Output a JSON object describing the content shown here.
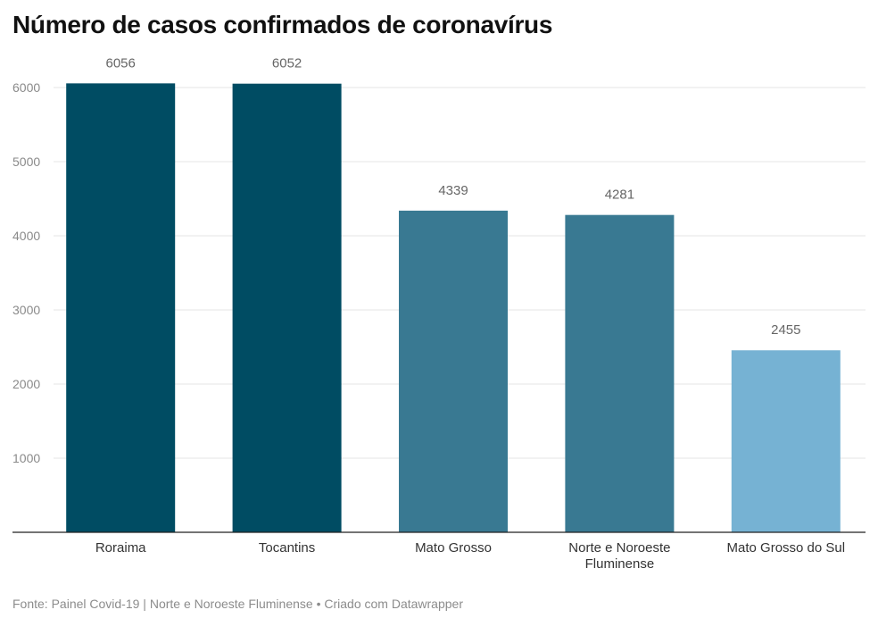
{
  "header": {
    "title": "Número de casos confirmados de coronavírus"
  },
  "footer": {
    "text": "Fonte: Painel Covid-19 | Norte e Noroeste Fluminense • Criado com Datawrapper"
  },
  "chart_data": {
    "type": "bar",
    "title": "Número de casos confirmados de coronavírus",
    "xlabel": "",
    "ylabel": "",
    "categories": [
      [
        "Roraima"
      ],
      [
        "Tocantins"
      ],
      [
        "Mato Grosso"
      ],
      [
        "Norte e Noroeste",
        "Fluminense"
      ],
      [
        "Mato Grosso do Sul"
      ]
    ],
    "values": [
      6056,
      6052,
      4339,
      4281,
      2455
    ],
    "data_labels": [
      "6056",
      "6052",
      "4339",
      "4281",
      "2455"
    ],
    "bar_colors": [
      "#004c63",
      "#004c63",
      "#397992",
      "#397992",
      "#76b2d3"
    ],
    "ylim": [
      0,
      6000
    ],
    "yticks": [
      1000,
      2000,
      3000,
      4000,
      5000,
      6000
    ],
    "grid": true,
    "legend": "none"
  }
}
